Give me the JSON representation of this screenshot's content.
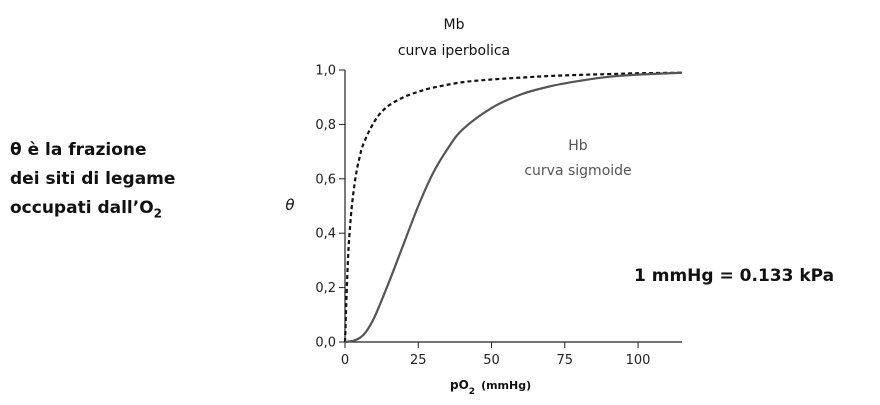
{
  "notes": {
    "binding_fraction": {
      "line1": "θ è la frazione",
      "line2": "dei siti di legame",
      "line3_main": "occupati dall’O",
      "line3_sub": "2"
    },
    "unit_conversion": "1 mmHg = 0.133 kPa"
  },
  "chart_data": {
    "type": "line",
    "title": "",
    "xlabel": {
      "main": "pO",
      "sub": "2",
      "unit": "(mmHg)"
    },
    "ylabel": "θ",
    "xlim": [
      0,
      115
    ],
    "ylim": [
      0,
      1.0
    ],
    "xticks": [
      {
        "value": 0,
        "label": "0"
      },
      {
        "value": 25,
        "label": "25"
      },
      {
        "value": 50,
        "label": "50"
      },
      {
        "value": 75,
        "label": "75"
      },
      {
        "value": 100,
        "label": "100"
      }
    ],
    "yticks": [
      {
        "value": 0,
        "label": "0,0"
      },
      {
        "value": 0.2,
        "label": "0,2"
      },
      {
        "value": 0.4,
        "label": "0,4"
      },
      {
        "value": 0.6,
        "label": "0,6"
      },
      {
        "value": 0.8,
        "label": "0,8"
      },
      {
        "value": 1.0,
        "label": "1,0"
      }
    ],
    "grid": false,
    "series": [
      {
        "label_lines": [
          "Mb",
          "curva iperbolica"
        ],
        "style": "dashed",
        "color": "#111111",
        "x": [
          0,
          1,
          2,
          3,
          4,
          5,
          6,
          8,
          10,
          12,
          15,
          20,
          25,
          30,
          40,
          50,
          60,
          70,
          80,
          90,
          100,
          115
        ],
        "y": [
          0,
          0.3,
          0.46,
          0.56,
          0.63,
          0.68,
          0.72,
          0.77,
          0.81,
          0.84,
          0.87,
          0.9,
          0.92,
          0.935,
          0.955,
          0.965,
          0.972,
          0.978,
          0.982,
          0.985,
          0.988,
          0.99
        ]
      },
      {
        "label_lines": [
          "Hb",
          "curva sigmoide"
        ],
        "style": "solid",
        "color": "#555555",
        "x": [
          0,
          3,
          5,
          7,
          10,
          15,
          20,
          25,
          30,
          35,
          40,
          50,
          60,
          70,
          80,
          90,
          100,
          115
        ],
        "y": [
          0,
          0.005,
          0.015,
          0.035,
          0.09,
          0.22,
          0.36,
          0.5,
          0.62,
          0.71,
          0.78,
          0.86,
          0.91,
          0.94,
          0.96,
          0.975,
          0.983,
          0.99
        ]
      }
    ]
  }
}
